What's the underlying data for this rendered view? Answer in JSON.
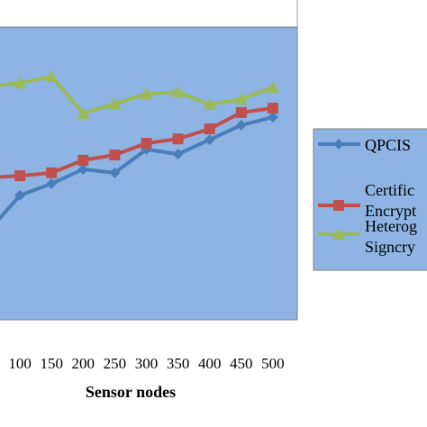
{
  "chart_data": {
    "type": "line",
    "x_label": "Sensor nodes",
    "categories": [
      null,
      "100",
      "150",
      "200",
      "250",
      "300",
      "350",
      "400",
      "450",
      "500"
    ],
    "ylim": [
      0,
      100
    ],
    "series": [
      {
        "name": "QPCIS",
        "color": "#4a7ebb",
        "marker": "diamond",
        "values": [
          30.2,
          42.5,
          46.5,
          51.4,
          50.2,
          58.2,
          56.6,
          61.5,
          66.5,
          69.2
        ]
      },
      {
        "name": "Certific\nEncrypt",
        "color": "#c0504d",
        "marker": "square",
        "values": [
          48.6,
          49.2,
          50.2,
          54.5,
          56.3,
          60.3,
          61.8,
          65.2,
          70.8,
          72.3
        ]
      },
      {
        "name": "Heterog\nSigncry",
        "color": "#9bbb59",
        "marker": "triangle",
        "values": [
          79.7,
          80.9,
          83.1,
          70.5,
          73.8,
          77.2,
          77.8,
          73.5,
          75.4,
          79.4
        ]
      }
    ]
  }
}
